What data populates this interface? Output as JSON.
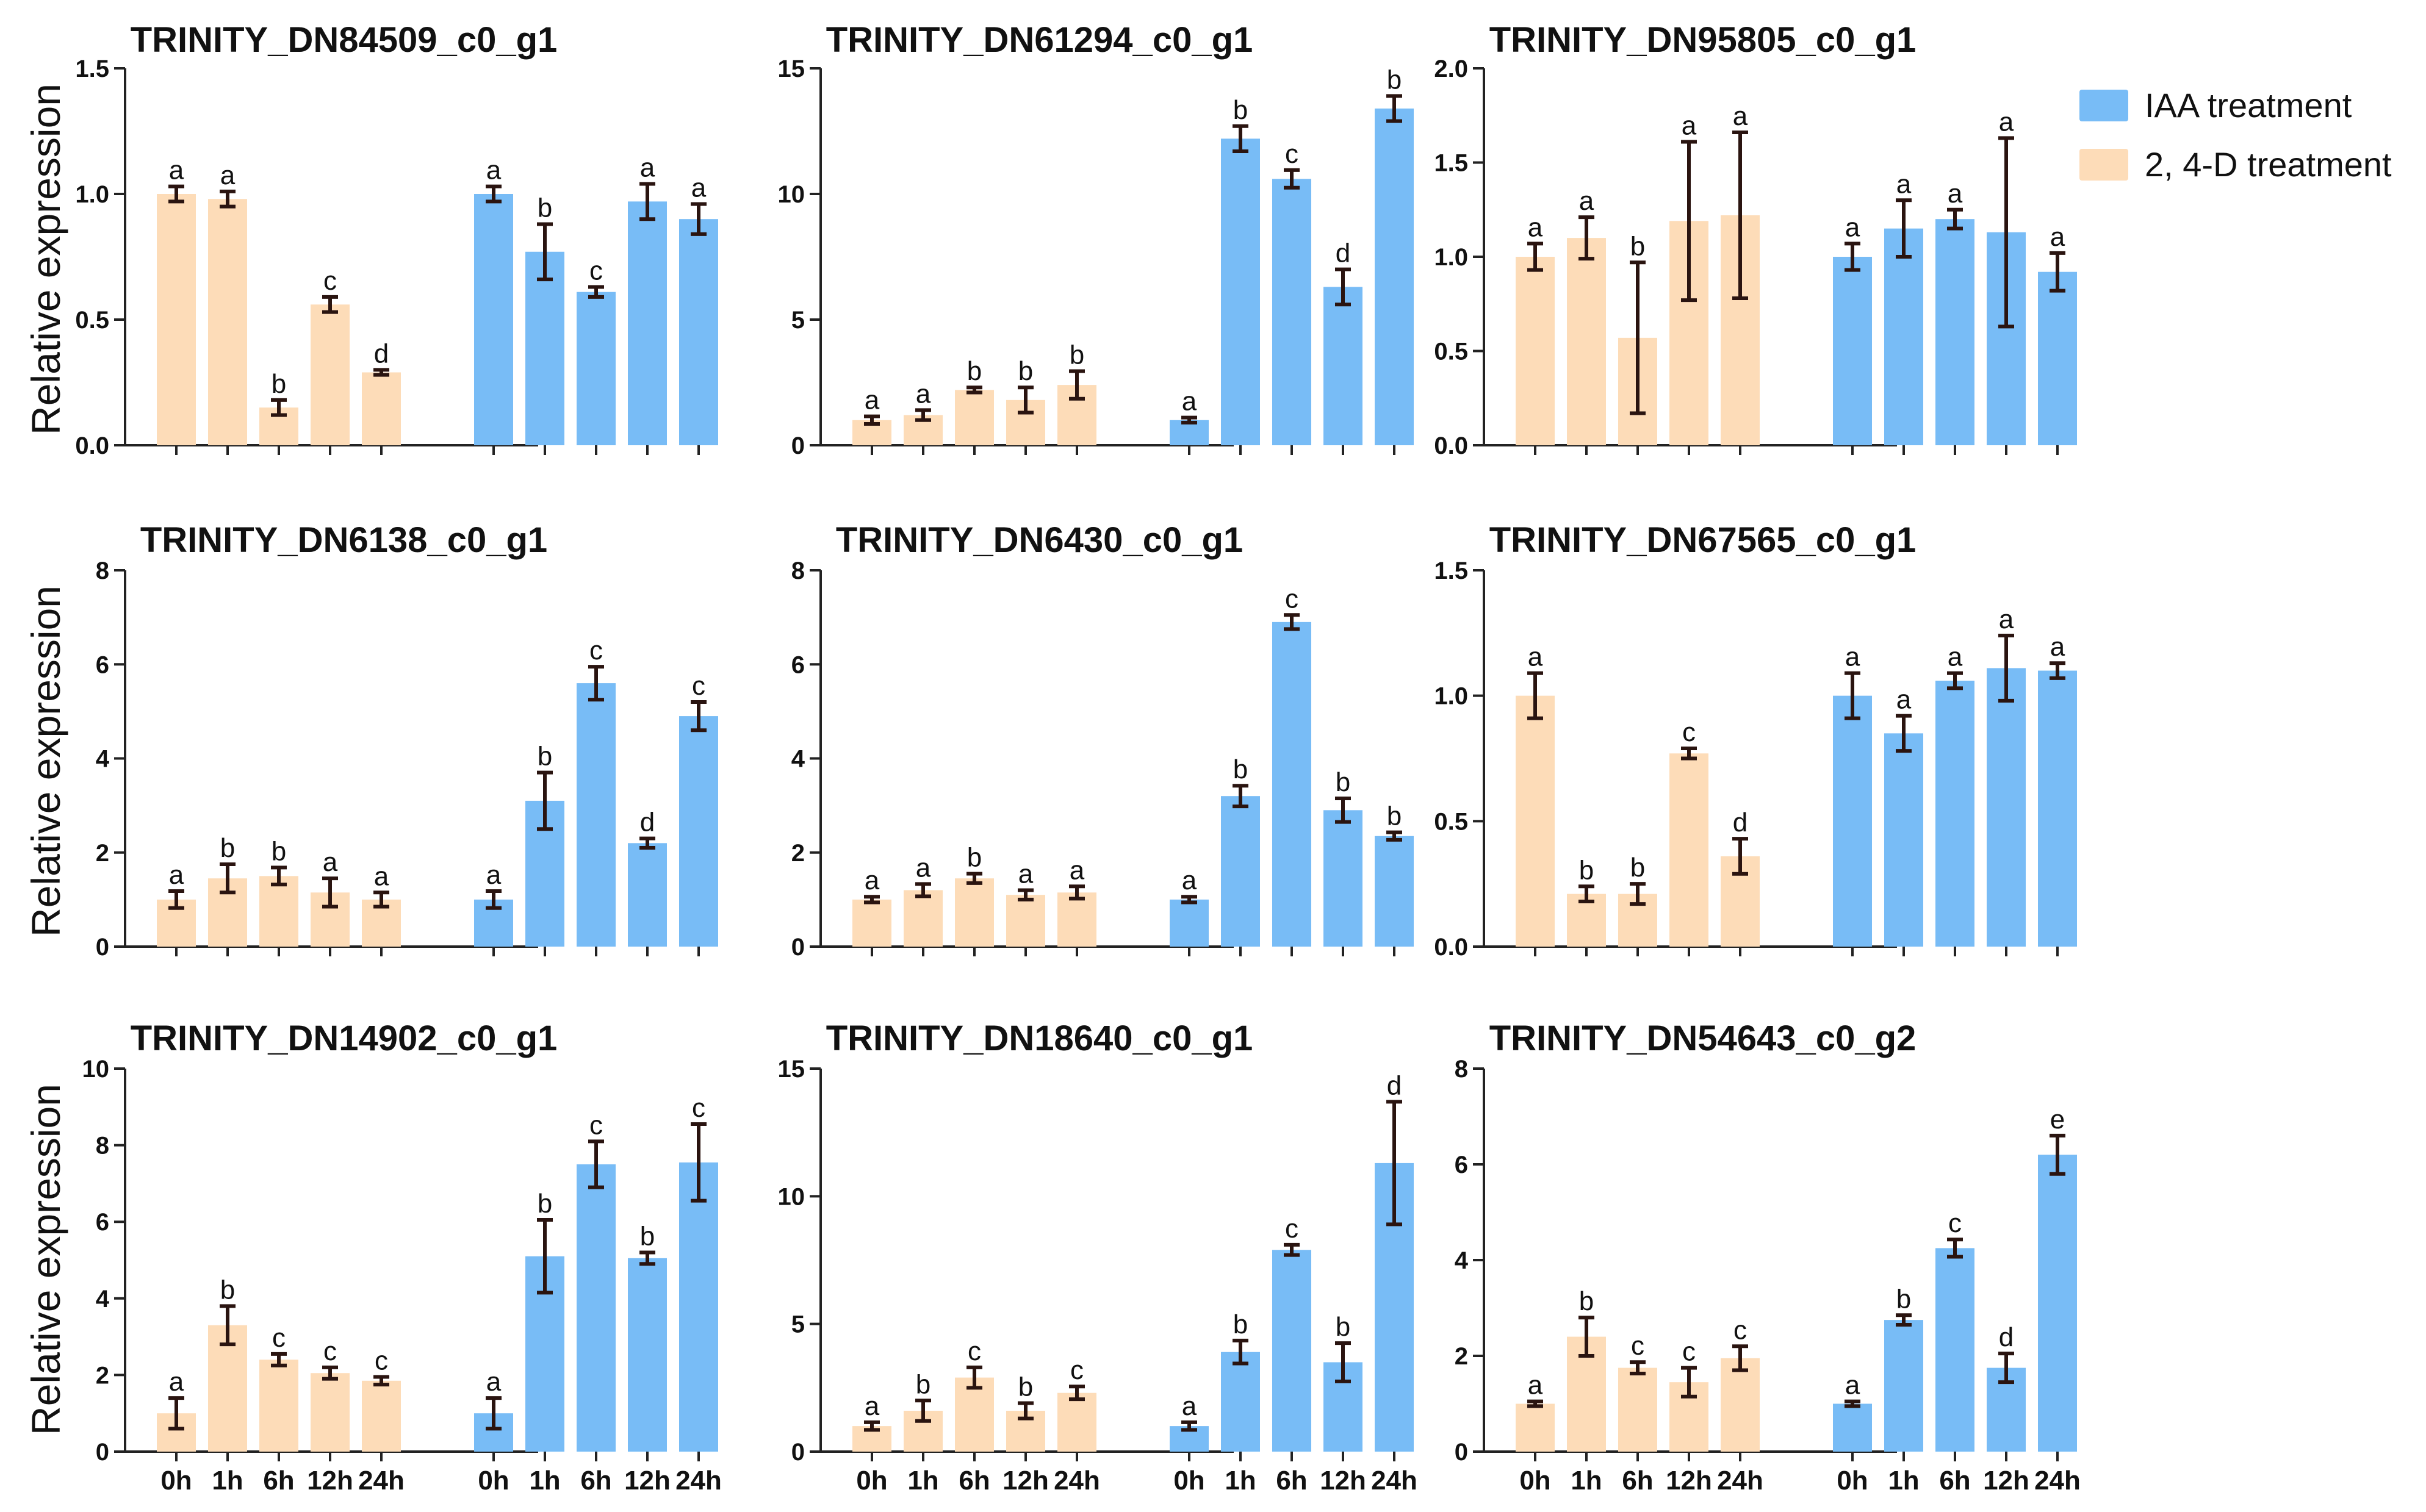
{
  "ylabel": "Relative expression",
  "legend": [
    {
      "label": "IAA treatment",
      "color": "#78bcf6"
    },
    {
      "label": "2, 4-D treatment",
      "color": "#fddcb8"
    }
  ],
  "colors": {
    "iaa": "#78bcf6",
    "d24": "#fddcb8",
    "axis": "#222222",
    "error": "#2a1410"
  },
  "chart_data": [
    {
      "type": "bar",
      "title": "TRINITY_DN84509_c0_g1",
      "ylim": [
        0,
        1.5
      ],
      "yticks": [
        "0.0",
        "0.5",
        "1.0",
        "1.5"
      ],
      "categories": [
        "0h",
        "1h",
        "6h",
        "12h",
        "24h"
      ],
      "series": [
        {
          "name": "2, 4-D treatment",
          "values": [
            1.0,
            0.98,
            0.15,
            0.56,
            0.29
          ],
          "errors": [
            0.03,
            0.03,
            0.03,
            0.03,
            0.01
          ],
          "letters": [
            "a",
            "a",
            "b",
            "c",
            "d"
          ]
        },
        {
          "name": "IAA treatment",
          "values": [
            1.0,
            0.77,
            0.61,
            0.97,
            0.9
          ],
          "errors": [
            0.03,
            0.11,
            0.02,
            0.07,
            0.06
          ],
          "letters": [
            "a",
            "b",
            "c",
            "a",
            "a"
          ]
        }
      ]
    },
    {
      "type": "bar",
      "title": "TRINITY_DN61294_c0_g1",
      "ylim": [
        0,
        15
      ],
      "yticks": [
        "0",
        "5",
        "10",
        "15"
      ],
      "categories": [
        "0h",
        "1h",
        "6h",
        "12h",
        "24h"
      ],
      "series": [
        {
          "name": "2, 4-D treatment",
          "values": [
            1.0,
            1.2,
            2.2,
            1.8,
            2.4
          ],
          "errors": [
            0.15,
            0.2,
            0.1,
            0.5,
            0.55
          ],
          "letters": [
            "a",
            "a",
            "b",
            "b",
            "b"
          ]
        },
        {
          "name": "IAA treatment",
          "values": [
            1.0,
            12.2,
            10.6,
            6.3,
            13.4
          ],
          "errors": [
            0.1,
            0.5,
            0.35,
            0.7,
            0.5
          ],
          "letters": [
            "a",
            "b",
            "c",
            "d",
            "b"
          ]
        }
      ]
    },
    {
      "type": "bar",
      "title": "TRINITY_DN95805_c0_g1",
      "ylim": [
        0,
        2.0
      ],
      "yticks": [
        "0.0",
        "0.5",
        "1.0",
        "1.5",
        "2.0"
      ],
      "categories": [
        "0h",
        "1h",
        "6h",
        "12h",
        "24h"
      ],
      "series": [
        {
          "name": "2, 4-D treatment",
          "values": [
            1.0,
            1.1,
            0.57,
            1.19,
            1.22
          ],
          "errors": [
            0.07,
            0.11,
            0.4,
            0.42,
            0.44
          ],
          "letters": [
            "a",
            "a",
            "b",
            "a",
            "a"
          ]
        },
        {
          "name": "IAA treatment",
          "values": [
            1.0,
            1.15,
            1.2,
            1.13,
            0.92
          ],
          "errors": [
            0.07,
            0.15,
            0.05,
            0.5,
            0.1
          ],
          "letters": [
            "a",
            "a",
            "a",
            "a",
            "a"
          ]
        }
      ]
    },
    {
      "type": "bar",
      "title": "TRINITY_DN6138_c0_g1",
      "ylim": [
        0,
        8
      ],
      "yticks": [
        "0",
        "2",
        "4",
        "6",
        "8"
      ],
      "categories": [
        "0h",
        "1h",
        "6h",
        "12h",
        "24h"
      ],
      "series": [
        {
          "name": "2, 4-D treatment",
          "values": [
            1.0,
            1.45,
            1.5,
            1.15,
            1.0
          ],
          "errors": [
            0.18,
            0.3,
            0.18,
            0.3,
            0.15
          ],
          "letters": [
            "a",
            "b",
            "b",
            "a",
            "a"
          ]
        },
        {
          "name": "IAA treatment",
          "values": [
            1.0,
            3.1,
            5.6,
            2.2,
            4.9
          ],
          "errors": [
            0.18,
            0.6,
            0.35,
            0.1,
            0.3
          ],
          "letters": [
            "a",
            "b",
            "c",
            "d",
            "c"
          ]
        }
      ]
    },
    {
      "type": "bar",
      "title": "TRINITY_DN6430_c0_g1",
      "ylim": [
        0,
        8
      ],
      "yticks": [
        "0",
        "2",
        "4",
        "6",
        "8"
      ],
      "categories": [
        "0h",
        "1h",
        "6h",
        "12h",
        "24h"
      ],
      "series": [
        {
          "name": "2, 4-D treatment",
          "values": [
            1.0,
            1.2,
            1.45,
            1.1,
            1.15
          ],
          "errors": [
            0.06,
            0.13,
            0.1,
            0.1,
            0.13
          ],
          "letters": [
            "a",
            "a",
            "b",
            "a",
            "a"
          ]
        },
        {
          "name": "IAA treatment",
          "values": [
            1.0,
            3.2,
            6.9,
            2.9,
            2.35
          ],
          "errors": [
            0.06,
            0.22,
            0.15,
            0.25,
            0.08
          ],
          "letters": [
            "a",
            "b",
            "c",
            "b",
            "b"
          ]
        }
      ]
    },
    {
      "type": "bar",
      "title": "TRINITY_DN67565_c0_g1",
      "ylim": [
        0,
        1.5
      ],
      "yticks": [
        "0.0",
        "0.5",
        "1.0",
        "1.5"
      ],
      "categories": [
        "0h",
        "1h",
        "6h",
        "12h",
        "24h"
      ],
      "series": [
        {
          "name": "2, 4-D treatment",
          "values": [
            1.0,
            0.21,
            0.21,
            0.77,
            0.36
          ],
          "errors": [
            0.09,
            0.03,
            0.04,
            0.02,
            0.07
          ],
          "letters": [
            "a",
            "b",
            "b",
            "c",
            "d"
          ]
        },
        {
          "name": "IAA treatment",
          "values": [
            1.0,
            0.85,
            1.06,
            1.11,
            1.1
          ],
          "errors": [
            0.09,
            0.07,
            0.03,
            0.13,
            0.03
          ],
          "letters": [
            "a",
            "a",
            "a",
            "a",
            "a"
          ]
        }
      ]
    },
    {
      "type": "bar",
      "title": "TRINITY_DN14902_c0_g1",
      "ylim": [
        0,
        10
      ],
      "yticks": [
        "0",
        "2",
        "4",
        "6",
        "8",
        "10"
      ],
      "categories": [
        "0h",
        "1h",
        "6h",
        "12h",
        "24h"
      ],
      "series": [
        {
          "name": "2, 4-D treatment",
          "values": [
            1.0,
            3.3,
            2.4,
            2.05,
            1.85
          ],
          "errors": [
            0.4,
            0.5,
            0.15,
            0.15,
            0.1
          ],
          "letters": [
            "a",
            "b",
            "c",
            "c",
            "c"
          ]
        },
        {
          "name": "IAA treatment",
          "values": [
            1.0,
            5.1,
            7.5,
            5.05,
            7.55
          ],
          "errors": [
            0.4,
            0.95,
            0.6,
            0.15,
            1.0
          ],
          "letters": [
            "a",
            "b",
            "c",
            "b",
            "c"
          ]
        }
      ]
    },
    {
      "type": "bar",
      "title": "TRINITY_DN18640_c0_g1",
      "ylim": [
        0,
        15
      ],
      "yticks": [
        "0",
        "5",
        "10",
        "15"
      ],
      "categories": [
        "0h",
        "1h",
        "6h",
        "12h",
        "24h"
      ],
      "series": [
        {
          "name": "2, 4-D treatment",
          "values": [
            1.0,
            1.6,
            2.9,
            1.6,
            2.3
          ],
          "errors": [
            0.15,
            0.4,
            0.4,
            0.3,
            0.25
          ],
          "letters": [
            "a",
            "b",
            "c",
            "b",
            "c"
          ]
        },
        {
          "name": "IAA treatment",
          "values": [
            1.0,
            3.9,
            7.9,
            3.5,
            11.3
          ],
          "errors": [
            0.15,
            0.45,
            0.2,
            0.75,
            2.4
          ],
          "letters": [
            "a",
            "b",
            "c",
            "b",
            "d"
          ]
        }
      ]
    },
    {
      "type": "bar",
      "title": "TRINITY_DN54643_c0_g2",
      "ylim": [
        0,
        8
      ],
      "yticks": [
        "0",
        "2",
        "4",
        "6",
        "8"
      ],
      "categories": [
        "0h",
        "1h",
        "6h",
        "12h",
        "24h"
      ],
      "series": [
        {
          "name": "2, 4-D treatment",
          "values": [
            1.0,
            2.4,
            1.75,
            1.45,
            1.95
          ],
          "errors": [
            0.05,
            0.4,
            0.12,
            0.3,
            0.25
          ],
          "letters": [
            "a",
            "b",
            "c",
            "c",
            "c"
          ]
        },
        {
          "name": "IAA treatment",
          "values": [
            1.0,
            2.75,
            4.25,
            1.75,
            6.2
          ],
          "errors": [
            0.05,
            0.1,
            0.18,
            0.3,
            0.4
          ],
          "letters": [
            "a",
            "b",
            "c",
            "d",
            "e"
          ]
        }
      ]
    }
  ]
}
